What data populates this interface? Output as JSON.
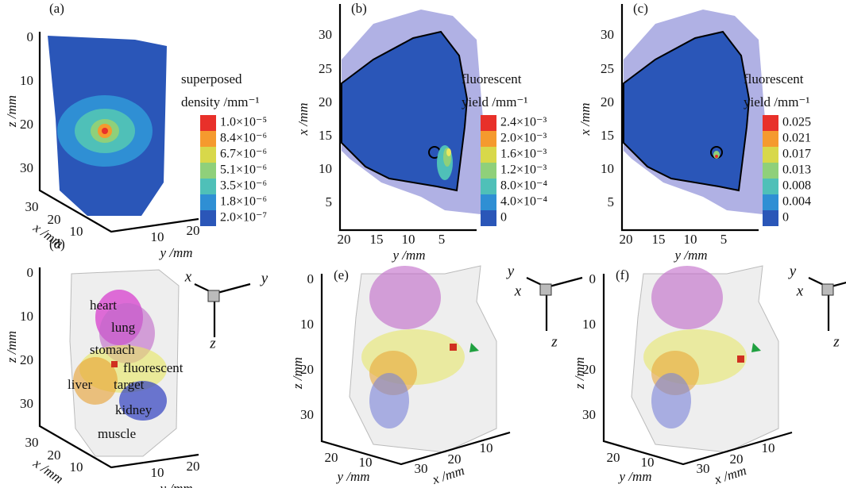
{
  "panels": {
    "a": {
      "label": "(a)",
      "z_axis": {
        "title": "z /mm",
        "ticks": [
          0,
          10,
          20,
          30
        ]
      },
      "x_axis": {
        "title": "x /mm",
        "ticks": [
          30,
          20,
          10
        ]
      },
      "y_axis": {
        "title": "y /mm",
        "ticks": [
          10,
          20
        ]
      },
      "colorbar": {
        "title": [
          "superposed",
          "density /mm⁻¹"
        ],
        "labels": [
          "1.0×10⁻⁵",
          "8.4×10⁻⁶",
          "6.7×10⁻⁶",
          "5.1×10⁻⁶",
          "3.5×10⁻⁶",
          "1.8×10⁻⁶",
          "2.0×10⁻⁷"
        ]
      }
    },
    "b": {
      "label": "(b)",
      "vertical_axis": {
        "title": "x /mm",
        "ticks": [
          30,
          25,
          20,
          15,
          10,
          5
        ]
      },
      "horizontal_axis": {
        "title": "y /mm",
        "ticks": [
          20,
          15,
          10,
          5
        ]
      },
      "colorbar": {
        "title": [
          "fluorescent",
          "yield /mm⁻¹"
        ],
        "labels": [
          "2.4×10⁻³",
          "2.0×10⁻³",
          "1.6×10⁻³",
          "1.2×10⁻³",
          "8.0×10⁻⁴",
          "4.0×10⁻⁴",
          "0"
        ]
      }
    },
    "c": {
      "label": "(c)",
      "vertical_axis": {
        "title": "x /mm",
        "ticks": [
          30,
          25,
          20,
          15,
          10,
          5
        ]
      },
      "horizontal_axis": {
        "title": "y /mm",
        "ticks": [
          20,
          15,
          10,
          5
        ]
      },
      "colorbar": {
        "title": [
          "fluorescent",
          "yield /mm⁻¹"
        ],
        "labels": [
          "0.025",
          "0.021",
          "0.017",
          "0.013",
          "0.008",
          "0.004",
          "0"
        ]
      }
    },
    "d": {
      "label": "(d)",
      "z_axis": {
        "title": "z /mm",
        "ticks": [
          0,
          10,
          20,
          30
        ]
      },
      "x_axis": {
        "title": "x /mm",
        "ticks": [
          30,
          20,
          10
        ]
      },
      "y_axis": {
        "title": "y /mm",
        "ticks": [
          10,
          20
        ]
      },
      "organs": [
        "heart",
        "lung",
        "stomach",
        "fluorescent",
        "target",
        "liver",
        "kidney",
        "muscle"
      ],
      "orientation": [
        "x",
        "y",
        "z"
      ]
    },
    "e": {
      "label": "(e)",
      "z_axis": {
        "title": "z /mm",
        "ticks": [
          0,
          10,
          20,
          30
        ]
      },
      "y_axis": {
        "title": "y /mm",
        "ticks": [
          20,
          10
        ]
      },
      "x_axis": {
        "title": "x /mm",
        "ticks": [
          30,
          20,
          10
        ]
      },
      "orientation": [
        "y",
        "x",
        "z"
      ]
    },
    "f": {
      "label": "(f)",
      "z_axis": {
        "title": "z /mm",
        "ticks": [
          0,
          10,
          20,
          30
        ]
      },
      "y_axis": {
        "title": "y /mm",
        "ticks": [
          20,
          10
        ]
      },
      "x_axis": {
        "title": "x /mm",
        "ticks": [
          30,
          20,
          10
        ]
      },
      "orientation": [
        "y",
        "x",
        "z"
      ]
    }
  }
}
